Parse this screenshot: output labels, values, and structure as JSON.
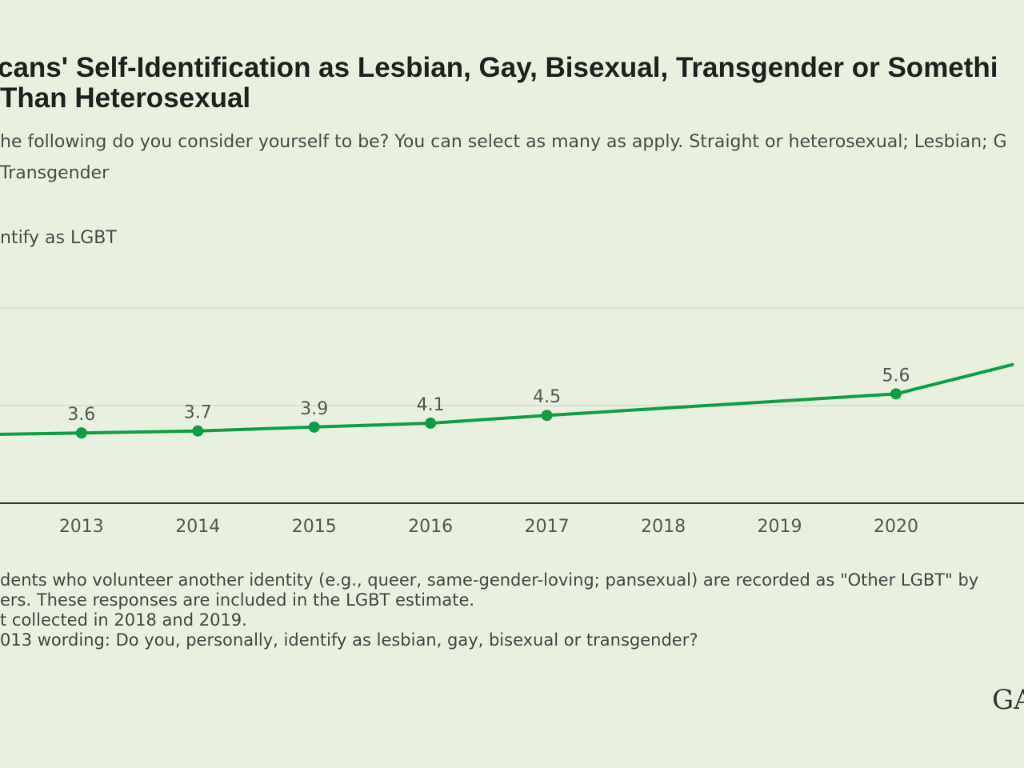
{
  "title": {
    "line1": "cans' Self-Identification as Lesbian, Gay, Bisexual, Transgender or Somethi",
    "line2": "Than Heterosexual"
  },
  "subtitle": {
    "line1": "he following do you consider yourself to be? You can select as many as apply. Straight or heterosexual; Lesbian; G",
    "line2": "Transgender"
  },
  "notes": [
    "dents who volunteer another identity (e.g., queer, same-gender-loving; pansexual) are recorded as \"Other LGBT\" by",
    "ers. These responses are included in the LGBT estimate.",
    "t collected in 2018 and 2019.",
    "013 wording: Do you, personally, identify as lesbian, gay, bisexual or transgender?"
  ],
  "logo": "GA",
  "colors": {
    "line": "#0e9c47",
    "background": "#e8f0df",
    "grid": "#d5dccf",
    "axis": "#333333"
  },
  "chart_data": {
    "type": "line",
    "ylabel": "ntify as LGBT",
    "x": [
      2012,
      2013,
      2014,
      2015,
      2016,
      2017,
      2018,
      2019,
      2020,
      2021
    ],
    "xlim": [
      2012.3,
      2021.1
    ],
    "tick_labels": [
      "2013",
      "2014",
      "2015",
      "2016",
      "2017",
      "2018",
      "2019",
      "2020"
    ],
    "ylim": [
      0,
      10
    ],
    "gridlines": [
      5,
      10
    ],
    "series": [
      {
        "points": [
          {
            "x": 2012,
            "y": 3.5,
            "label": ""
          },
          {
            "x": 2013,
            "y": 3.6,
            "label": "3.6"
          },
          {
            "x": 2014,
            "y": 3.7,
            "label": "3.7"
          },
          {
            "x": 2015,
            "y": 3.9,
            "label": "3.9"
          },
          {
            "x": 2016,
            "y": 4.1,
            "label": "4.1"
          },
          {
            "x": 2017,
            "y": 4.5,
            "label": "4.5"
          },
          {
            "x": 2020,
            "y": 5.6,
            "label": "5.6"
          },
          {
            "x": 2021,
            "y": 7.1,
            "label": ""
          }
        ]
      }
    ]
  }
}
